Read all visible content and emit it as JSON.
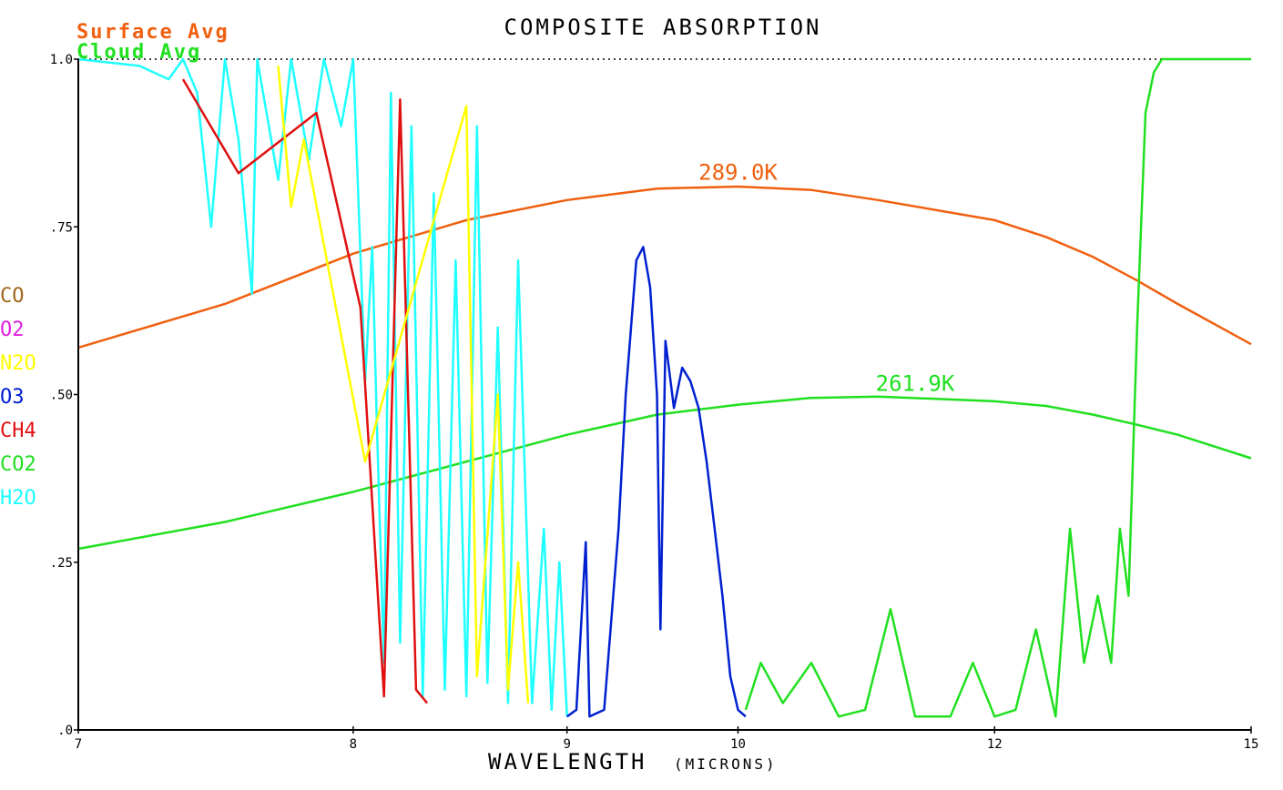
{
  "chart_data": {
    "type": "line",
    "title": "COMPOSITE ABSORPTION",
    "xlabel": "WAVELENGTH",
    "xlabel_unit": "(MICRONS)",
    "xlim": [
      7,
      15
    ],
    "ylim": [
      0,
      1
    ],
    "x_scale": "reciprocal",
    "x_ticks": [
      {
        "value": 7,
        "label": "7"
      },
      {
        "value": 8,
        "label": "8"
      },
      {
        "value": 9,
        "label": "9"
      },
      {
        "value": 10,
        "label": "10"
      },
      {
        "value": 12,
        "label": "12"
      },
      {
        "value": 15,
        "label": "15"
      }
    ],
    "y_ticks": [
      {
        "value": 0,
        "label": ".0"
      },
      {
        "value": 0.25,
        "label": ".25"
      },
      {
        "value": 0.5,
        "label": ".50"
      },
      {
        "value": 0.75,
        "label": ".75"
      },
      {
        "value": 1.0,
        "label": "1.0"
      }
    ],
    "reference_line": {
      "y": 1.0,
      "style": "dotted"
    },
    "legend_gases": [
      {
        "name": "CO",
        "color": "#a0661e"
      },
      {
        "name": "O2",
        "color": "#e020e0"
      },
      {
        "name": "N2O",
        "color": "#ffff00"
      },
      {
        "name": "O3",
        "color": "#0020d0"
      },
      {
        "name": "CH4",
        "color": "#e01010"
      },
      {
        "name": "CO2",
        "color": "#20e020"
      },
      {
        "name": "H2O",
        "color": "#20ffff"
      }
    ],
    "averages": [
      {
        "name": "Surface Avg",
        "color": "#f06010"
      },
      {
        "name": "Cloud Avg",
        "color": "#20e020"
      }
    ],
    "blackbody_curves": [
      {
        "label": "289.0K",
        "color": "#f06010",
        "points": [
          [
            7,
            0.57
          ],
          [
            7.5,
            0.635
          ],
          [
            8,
            0.71
          ],
          [
            8.5,
            0.76
          ],
          [
            9,
            0.79
          ],
          [
            9.5,
            0.807
          ],
          [
            10,
            0.81
          ],
          [
            10.5,
            0.805
          ],
          [
            11,
            0.79
          ],
          [
            12,
            0.76
          ],
          [
            12.5,
            0.735
          ],
          [
            13,
            0.705
          ],
          [
            13.5,
            0.67
          ],
          [
            14,
            0.635
          ],
          [
            15,
            0.575
          ]
        ],
        "label_x": 10.0,
        "label_y": 0.815
      },
      {
        "label": "261.9K",
        "color": "#20e020",
        "points": [
          [
            7,
            0.27
          ],
          [
            7.5,
            0.31
          ],
          [
            8,
            0.355
          ],
          [
            8.5,
            0.4
          ],
          [
            9,
            0.44
          ],
          [
            9.5,
            0.47
          ],
          [
            10,
            0.485
          ],
          [
            10.5,
            0.495
          ],
          [
            11,
            0.497
          ],
          [
            12,
            0.49
          ],
          [
            12.5,
            0.483
          ],
          [
            13,
            0.47
          ],
          [
            13.5,
            0.455
          ],
          [
            14,
            0.44
          ],
          [
            15,
            0.405
          ]
        ],
        "label_x": 11.3,
        "label_y": 0.5
      }
    ],
    "series": [
      {
        "name": "H2O",
        "color": "#20ffff",
        "points": [
          [
            7,
            1.0
          ],
          [
            7.2,
            0.99
          ],
          [
            7.3,
            0.97
          ],
          [
            7.35,
            1.0
          ],
          [
            7.4,
            0.95
          ],
          [
            7.45,
            0.75
          ],
          [
            7.5,
            1.0
          ],
          [
            7.55,
            0.88
          ],
          [
            7.6,
            0.65
          ],
          [
            7.62,
            1.0
          ],
          [
            7.7,
            0.82
          ],
          [
            7.75,
            1.0
          ],
          [
            7.82,
            0.85
          ],
          [
            7.88,
            1.0
          ],
          [
            7.95,
            0.9
          ],
          [
            8.0,
            1.0
          ],
          [
            8.05,
            0.52
          ],
          [
            8.08,
            0.72
          ],
          [
            8.1,
            0.45
          ],
          [
            8.13,
            0.1
          ],
          [
            8.16,
            0.95
          ],
          [
            8.2,
            0.13
          ],
          [
            8.25,
            0.9
          ],
          [
            8.3,
            0.05
          ],
          [
            8.35,
            0.8
          ],
          [
            8.4,
            0.06
          ],
          [
            8.45,
            0.7
          ],
          [
            8.5,
            0.05
          ],
          [
            8.55,
            0.9
          ],
          [
            8.6,
            0.07
          ],
          [
            8.65,
            0.6
          ],
          [
            8.7,
            0.04
          ],
          [
            8.75,
            0.7
          ],
          [
            8.82,
            0.04
          ],
          [
            8.88,
            0.3
          ],
          [
            8.92,
            0.03
          ],
          [
            8.96,
            0.25
          ],
          [
            9.0,
            0.02
          ]
        ]
      },
      {
        "name": "O3",
        "color": "#0020d0",
        "points": [
          [
            9.0,
            0.02
          ],
          [
            9.05,
            0.03
          ],
          [
            9.1,
            0.28
          ],
          [
            9.12,
            0.02
          ],
          [
            9.2,
            0.03
          ],
          [
            9.28,
            0.3
          ],
          [
            9.32,
            0.5
          ],
          [
            9.38,
            0.7
          ],
          [
            9.42,
            0.72
          ],
          [
            9.46,
            0.66
          ],
          [
            9.5,
            0.5
          ],
          [
            9.52,
            0.15
          ],
          [
            9.55,
            0.58
          ],
          [
            9.6,
            0.48
          ],
          [
            9.65,
            0.54
          ],
          [
            9.7,
            0.52
          ],
          [
            9.75,
            0.48
          ],
          [
            9.8,
            0.4
          ],
          [
            9.85,
            0.3
          ],
          [
            9.9,
            0.2
          ],
          [
            9.95,
            0.08
          ],
          [
            10.0,
            0.03
          ],
          [
            10.05,
            0.02
          ]
        ]
      },
      {
        "name": "CO2",
        "color": "#20e020",
        "points": [
          [
            10.05,
            0.03
          ],
          [
            10.15,
            0.1
          ],
          [
            10.3,
            0.04
          ],
          [
            10.5,
            0.1
          ],
          [
            10.7,
            0.02
          ],
          [
            10.9,
            0.03
          ],
          [
            11.1,
            0.18
          ],
          [
            11.3,
            0.02
          ],
          [
            11.6,
            0.02
          ],
          [
            11.8,
            0.1
          ],
          [
            12.0,
            0.02
          ],
          [
            12.2,
            0.03
          ],
          [
            12.4,
            0.15
          ],
          [
            12.6,
            0.02
          ],
          [
            12.75,
            0.3
          ],
          [
            12.9,
            0.1
          ],
          [
            13.05,
            0.2
          ],
          [
            13.2,
            0.1
          ],
          [
            13.3,
            0.3
          ],
          [
            13.4,
            0.2
          ],
          [
            13.5,
            0.6
          ],
          [
            13.6,
            0.92
          ],
          [
            13.7,
            0.98
          ],
          [
            13.8,
            1.0
          ],
          [
            14.0,
            1.0
          ],
          [
            15.0,
            1.0
          ]
        ]
      },
      {
        "name": "CH4",
        "color": "#e01010",
        "points": [
          [
            7.35,
            0.97
          ],
          [
            7.55,
            0.83
          ],
          [
            7.85,
            0.92
          ],
          [
            8.03,
            0.63
          ],
          [
            8.13,
            0.05
          ],
          [
            8.2,
            0.94
          ],
          [
            8.27,
            0.06
          ],
          [
            8.32,
            0.04
          ]
        ]
      },
      {
        "name": "N2O",
        "color": "#ffff00",
        "points": [
          [
            7.7,
            0.99
          ],
          [
            7.75,
            0.78
          ],
          [
            7.8,
            0.88
          ],
          [
            8.05,
            0.4
          ],
          [
            8.5,
            0.93
          ],
          [
            8.55,
            0.08
          ],
          [
            8.65,
            0.5
          ],
          [
            8.7,
            0.06
          ],
          [
            8.75,
            0.25
          ],
          [
            8.8,
            0.04
          ]
        ]
      }
    ]
  }
}
